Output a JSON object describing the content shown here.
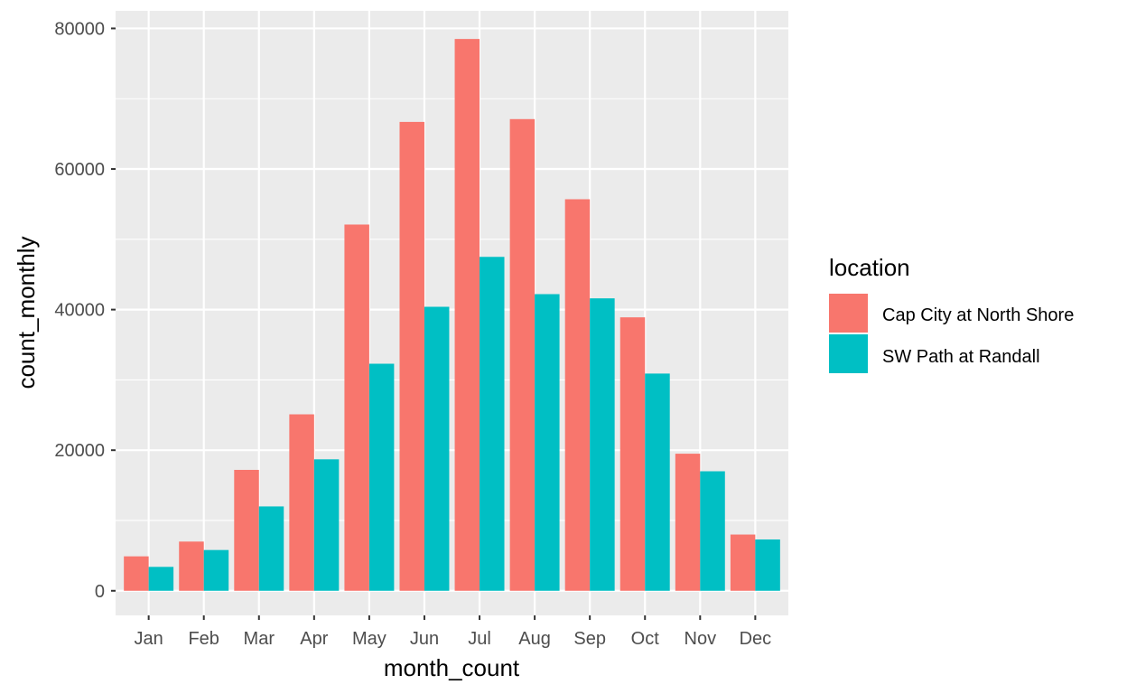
{
  "chart_data": {
    "type": "bar",
    "categories": [
      "Jan",
      "Feb",
      "Mar",
      "Apr",
      "May",
      "Jun",
      "Jul",
      "Aug",
      "Sep",
      "Oct",
      "Nov",
      "Dec"
    ],
    "series": [
      {
        "name": "Cap City at North Shore",
        "color": "#F8766D",
        "values": [
          4900,
          7000,
          17200,
          25100,
          52100,
          66700,
          78500,
          67100,
          55700,
          38900,
          19500,
          8000
        ]
      },
      {
        "name": "SW Path at Randall",
        "color": "#00BFC4",
        "values": [
          3400,
          5800,
          12000,
          18700,
          32300,
          40400,
          47500,
          42200,
          41600,
          30900,
          17000,
          7300
        ]
      }
    ],
    "xlabel": "month_count",
    "ylabel": "count_monthly",
    "ylim": [
      -3500,
      82500
    ],
    "yticks": [
      0,
      20000,
      40000,
      60000,
      80000
    ],
    "ytick_labels": [
      "0",
      "20000",
      "40000",
      "60000",
      "80000"
    ],
    "grid": true,
    "legend": {
      "title": "location",
      "position": "right"
    },
    "panel_background": "#EBEBEB",
    "grid_color": "#FFFFFF"
  }
}
